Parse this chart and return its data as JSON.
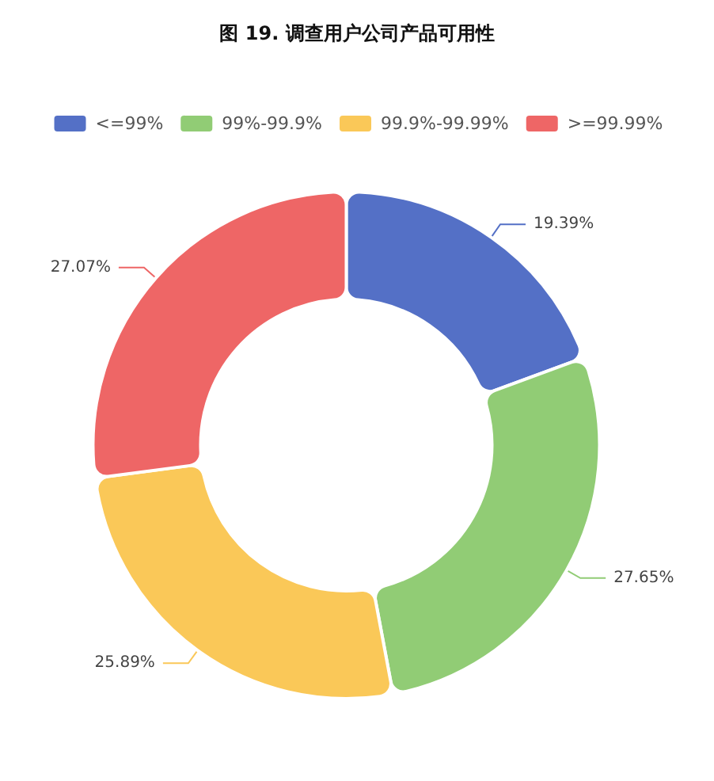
{
  "chart_data": {
    "type": "donut",
    "title": "图 19. 调查用户公司产品可用性",
    "categories": [
      "<=99%",
      "99%-99.9%",
      "99.9%-99.99%",
      ">=99.99%"
    ],
    "values": [
      19.39,
      27.65,
      25.89,
      27.07
    ],
    "value_labels": [
      "19.39%",
      "27.65%",
      "25.89%",
      "27.07%"
    ],
    "colors": [
      "#5470c6",
      "#91cc75",
      "#fac858",
      "#ee6666"
    ],
    "legend": "top"
  }
}
